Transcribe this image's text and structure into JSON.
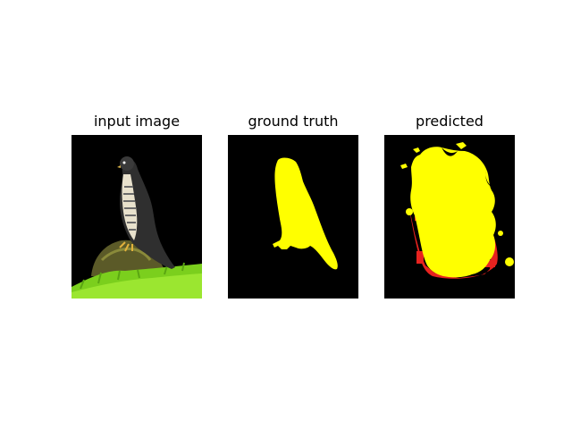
{
  "figure": {
    "panels": [
      {
        "title": "input image"
      },
      {
        "title": "ground truth"
      },
      {
        "title": "predicted"
      }
    ]
  },
  "colors": {
    "background": "#000000",
    "mask": "#ffff00",
    "error": "#e8231f",
    "grass": "#86d81a",
    "bird_dark": "#333333",
    "bird_light": "#eae3d2"
  }
}
